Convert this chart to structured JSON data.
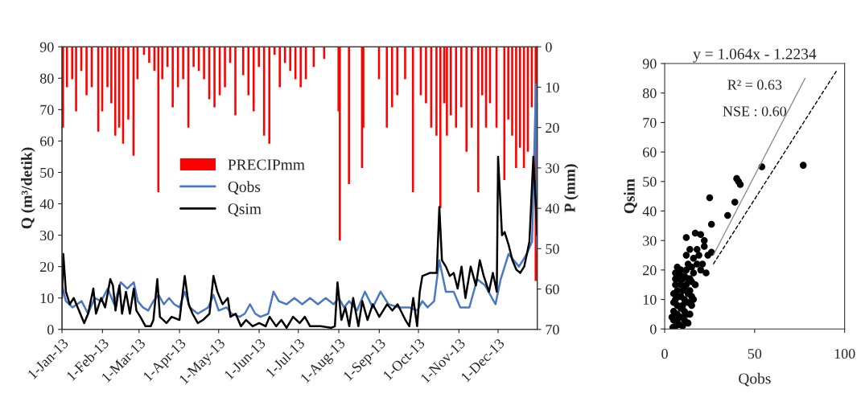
{
  "chart_data": [
    {
      "type": "line",
      "xlabel": null,
      "ylabel": "Q (m³/detik)",
      "y2label": "P (mm)",
      "legend": "center left",
      "xlim": [
        "2013-01-01",
        "2013-12-31"
      ],
      "xticks": [
        {
          "value": "2013-01-01",
          "label": "1-Jan-13"
        },
        {
          "value": "2013-02-01",
          "label": "1-Feb-13"
        },
        {
          "value": "2013-03-01",
          "label": "1-Mar-13"
        },
        {
          "value": "2013-04-01",
          "label": "1-Apr-13"
        },
        {
          "value": "2013-05-01",
          "label": "1-May-13"
        },
        {
          "value": "2013-06-01",
          "label": "1-Jun-13"
        },
        {
          "value": "2013-07-01",
          "label": "1-Jul-13"
        },
        {
          "value": "2013-08-01",
          "label": "1-Aug-13"
        },
        {
          "value": "2013-09-01",
          "label": "1-Sep-13"
        },
        {
          "value": "2013-10-01",
          "label": "1-Oct-13"
        },
        {
          "value": "2013-11-01",
          "label": "1-Nov-13"
        },
        {
          "value": "2013-12-01",
          "label": "1-Dec-13"
        }
      ],
      "ylim": [
        0,
        90
      ],
      "yticks": [
        0,
        10,
        20,
        30,
        40,
        50,
        60,
        70,
        80,
        90
      ],
      "y2lim": [
        70,
        0
      ],
      "y2ticks": [
        0,
        10,
        20,
        30,
        40,
        50,
        60,
        70
      ],
      "series": [
        {
          "name": "PRECIPmm",
          "type": "bar",
          "axis": "y2",
          "color": "#ff0000",
          "x": [
            "2013-01-01",
            "2013-01-04",
            "2013-01-08",
            "2013-01-11",
            "2013-01-15",
            "2013-01-19",
            "2013-01-23",
            "2013-01-28",
            "2013-01-31",
            "2013-02-04",
            "2013-02-07",
            "2013-02-10",
            "2013-02-13",
            "2013-02-16",
            "2013-02-20",
            "2013-02-24",
            "2013-02-27",
            "2013-03-04",
            "2013-03-08",
            "2013-03-12",
            "2013-03-15",
            "2013-03-18",
            "2013-03-22",
            "2013-03-26",
            "2013-03-30",
            "2013-04-03",
            "2013-04-07",
            "2013-04-11",
            "2013-04-15",
            "2013-04-19",
            "2013-04-23",
            "2013-04-27",
            "2013-05-01",
            "2013-05-05",
            "2013-05-09",
            "2013-05-13",
            "2013-05-19",
            "2013-05-23",
            "2013-05-27",
            "2013-05-31",
            "2013-06-04",
            "2013-06-08",
            "2013-06-12",
            "2013-06-16",
            "2013-06-20",
            "2013-06-24",
            "2013-06-28",
            "2013-07-02",
            "2013-07-06",
            "2013-07-12",
            "2013-07-20",
            "2013-07-31",
            "2013-08-01",
            "2013-08-08",
            "2013-08-18",
            "2013-08-19",
            "2013-08-31",
            "2013-09-06",
            "2013-09-10",
            "2013-09-14",
            "2013-09-20",
            "2013-09-26",
            "2013-10-02",
            "2013-10-06",
            "2013-10-10",
            "2013-10-14",
            "2013-10-17",
            "2013-10-20",
            "2013-10-22",
            "2013-10-25",
            "2013-10-29",
            "2013-11-02",
            "2013-11-06",
            "2013-11-10",
            "2013-11-15",
            "2013-11-18",
            "2013-11-21",
            "2013-11-24",
            "2013-11-29",
            "2013-12-05",
            "2013-12-08",
            "2013-12-11",
            "2013-12-14",
            "2013-12-17",
            "2013-12-20",
            "2013-12-23",
            "2013-12-26",
            "2013-12-29"
          ],
          "values": [
            20,
            10,
            8,
            16,
            6,
            12,
            10,
            21,
            16,
            10,
            14,
            22,
            20,
            24,
            18,
            27,
            8,
            2,
            4,
            6,
            36,
            8,
            5,
            15,
            10,
            8,
            20,
            5,
            6,
            8,
            13,
            15,
            12,
            10,
            4,
            17,
            7,
            12,
            16,
            5,
            22,
            24,
            2,
            10,
            4,
            6,
            8,
            10,
            8,
            5,
            3,
            16,
            48,
            34,
            30,
            20,
            8,
            20,
            15,
            12,
            8,
            36,
            12,
            14,
            20,
            22,
            40,
            14,
            22,
            17,
            20,
            15,
            26,
            20,
            36,
            12,
            20,
            14,
            20,
            33,
            18,
            22,
            30,
            25,
            30,
            26,
            15,
            58
          ]
        },
        {
          "name": "Qobs",
          "color": "#4a78c2",
          "x": [
            "2013-01-01",
            "2013-01-04",
            "2013-01-09",
            "2013-01-16",
            "2013-01-21",
            "2013-01-26",
            "2013-01-31",
            "2013-02-05",
            "2013-02-10",
            "2013-02-15",
            "2013-02-20",
            "2013-02-25",
            "2013-02-28",
            "2013-03-04",
            "2013-03-08",
            "2013-03-12",
            "2013-03-16",
            "2013-03-20",
            "2013-03-24",
            "2013-03-28",
            "2013-04-01",
            "2013-04-05",
            "2013-04-09",
            "2013-04-15",
            "2013-04-19",
            "2013-04-23",
            "2013-04-27",
            "2013-05-01",
            "2013-05-07",
            "2013-05-11",
            "2013-05-17",
            "2013-05-21",
            "2013-05-25",
            "2013-05-29",
            "2013-06-02",
            "2013-06-08",
            "2013-06-12",
            "2013-06-16",
            "2013-06-22",
            "2013-06-28",
            "2013-07-04",
            "2013-07-10",
            "2013-07-16",
            "2013-07-22",
            "2013-07-28",
            "2013-08-01",
            "2013-08-05",
            "2013-08-09",
            "2013-08-15",
            "2013-08-21",
            "2013-08-27",
            "2013-09-02",
            "2013-09-08",
            "2013-09-16",
            "2013-09-24",
            "2013-09-30",
            "2013-10-04",
            "2013-10-08",
            "2013-10-13",
            "2013-10-17",
            "2013-10-22",
            "2013-10-28",
            "2013-11-02",
            "2013-11-09",
            "2013-11-15",
            "2013-11-21",
            "2013-11-29",
            "2013-12-03",
            "2013-12-09",
            "2013-12-17",
            "2013-12-23",
            "2013-12-27",
            "2013-12-30",
            "2013-12-31"
          ],
          "values": [
            14,
            9,
            7,
            9,
            5,
            10,
            9,
            13,
            8,
            15,
            13,
            15,
            9,
            7,
            6,
            9,
            11,
            8,
            10,
            8,
            7,
            12,
            7,
            5,
            6,
            7,
            11,
            6,
            7,
            5,
            4,
            5,
            8,
            5,
            4,
            5,
            12,
            9,
            8,
            10,
            8,
            10,
            8,
            10,
            8,
            10,
            7,
            9,
            6,
            12,
            7,
            12,
            8,
            7,
            7,
            6,
            9,
            7,
            9,
            22,
            12,
            12,
            7,
            7,
            16,
            14,
            8,
            16,
            24,
            20,
            24,
            28,
            78,
            25
          ]
        },
        {
          "name": "Qsim",
          "color": "#000000",
          "x": [
            "2013-01-01",
            "2013-01-02",
            "2013-01-04",
            "2013-01-07",
            "2013-01-10",
            "2013-01-14",
            "2013-01-18",
            "2013-01-21",
            "2013-01-25",
            "2013-01-27",
            "2013-01-31",
            "2013-02-03",
            "2013-02-07",
            "2013-02-09",
            "2013-02-11",
            "2013-02-14",
            "2013-02-16",
            "2013-02-19",
            "2013-02-22",
            "2013-02-25",
            "2013-02-27",
            "2013-03-02",
            "2013-03-06",
            "2013-03-10",
            "2013-03-12",
            "2013-03-15",
            "2013-03-17",
            "2013-03-22",
            "2013-03-26",
            "2013-04-01",
            "2013-04-05",
            "2013-04-08",
            "2013-04-11",
            "2013-04-15",
            "2013-04-19",
            "2013-04-24",
            "2013-04-27",
            "2013-04-30",
            "2013-05-04",
            "2013-05-08",
            "2013-05-10",
            "2013-05-14",
            "2013-05-18",
            "2013-05-22",
            "2013-05-27",
            "2013-06-01",
            "2013-06-06",
            "2013-06-09",
            "2013-06-14",
            "2013-06-18",
            "2013-06-22",
            "2013-06-27",
            "2013-07-02",
            "2013-07-06",
            "2013-07-10",
            "2013-07-18",
            "2013-07-26",
            "2013-07-29",
            "2013-07-31",
            "2013-08-03",
            "2013-08-06",
            "2013-08-09",
            "2013-08-12",
            "2013-08-16",
            "2013-08-19",
            "2013-08-23",
            "2013-08-27",
            "2013-09-01",
            "2013-09-07",
            "2013-09-11",
            "2013-09-15",
            "2013-09-21",
            "2013-09-24",
            "2013-09-27",
            "2013-09-30",
            "2013-10-02",
            "2013-10-04",
            "2013-10-10",
            "2013-10-15",
            "2013-10-17",
            "2013-10-19",
            "2013-10-22",
            "2013-10-25",
            "2013-10-28",
            "2013-10-31",
            "2013-11-03",
            "2013-11-06",
            "2013-11-10",
            "2013-11-14",
            "2013-11-17",
            "2013-11-20",
            "2013-11-24",
            "2013-11-27",
            "2013-11-30",
            "2013-12-01",
            "2013-12-04",
            "2013-12-06",
            "2013-12-09",
            "2013-12-12",
            "2013-12-15",
            "2013-12-18",
            "2013-12-21",
            "2013-12-25",
            "2013-12-28",
            "2013-12-31"
          ],
          "values": [
            10,
            24,
            12,
            8,
            10,
            6,
            2,
            5,
            13,
            5,
            10,
            7,
            16,
            14,
            6,
            14,
            5,
            12,
            5,
            13,
            6,
            4,
            1,
            1,
            3,
            16,
            4,
            2,
            4,
            3,
            17,
            8,
            5,
            2,
            3,
            5,
            17,
            12,
            8,
            10,
            4,
            5,
            1,
            3,
            1,
            2,
            1,
            4,
            1,
            3,
            0.5,
            4,
            2,
            4,
            1,
            1,
            0.5,
            1,
            15,
            3,
            7,
            1,
            10,
            1,
            9,
            3,
            8,
            4,
            8,
            6,
            8,
            3,
            1,
            10,
            1,
            12,
            17,
            18,
            18,
            39,
            22,
            20,
            17,
            18,
            13,
            20,
            10,
            20,
            14,
            22,
            17,
            12,
            18,
            12,
            55,
            30,
            31,
            27,
            22,
            19,
            18,
            20,
            28,
            55,
            30
          ]
        }
      ]
    },
    {
      "type": "scatter",
      "title": "y = 1.064x - 1.2234",
      "xlabel": "Qobs",
      "ylabel": "Qsim",
      "xlim": [
        0,
        100
      ],
      "xticks": [
        0,
        50,
        100
      ],
      "ylim": [
        0,
        90
      ],
      "yticks": [
        0,
        10,
        20,
        30,
        40,
        50,
        60,
        70,
        80,
        90
      ],
      "annotations": [
        "R² = 0.63",
        "NSE : 0.60"
      ],
      "series": [
        {
          "marker": "circle",
          "color": "#000000",
          "x": [
            77,
            54,
            40,
            41,
            42,
            39,
            35,
            25,
            26,
            26,
            24,
            22,
            20,
            17,
            12,
            14,
            18,
            22,
            20,
            23,
            21,
            16,
            18,
            12,
            15,
            12,
            9,
            7,
            6,
            8,
            10,
            13,
            15,
            6,
            11,
            13,
            5,
            7,
            9,
            11,
            13,
            15,
            5,
            7,
            9,
            11,
            14,
            5,
            7,
            9,
            11,
            13,
            5,
            8,
            10,
            4.5,
            6,
            7,
            10,
            12,
            14,
            16,
            6,
            8,
            10,
            6,
            4,
            15,
            17,
            19,
            13,
            11,
            9,
            7,
            12,
            14,
            16
          ],
          "values": [
            55.5,
            55,
            51,
            50,
            49,
            43,
            38.5,
            44.5,
            35.5,
            26,
            25,
            30,
            32,
            32.5,
            31,
            27,
            27,
            28,
            20,
            19,
            22,
            24,
            22,
            25,
            21,
            20,
            20,
            21,
            19,
            17,
            17,
            17,
            16,
            15,
            14,
            12,
            12,
            11,
            11,
            10,
            9,
            8,
            9,
            8,
            7,
            6,
            5,
            6,
            5,
            4,
            3,
            2,
            3,
            1.5,
            1,
            0.5,
            1,
            3,
            8,
            15,
            13,
            19,
            17,
            19,
            13,
            10,
            4,
            11,
            15,
            25,
            22,
            18,
            15,
            13,
            5,
            17,
            10
          ]
        },
        {
          "type": "line",
          "line_style": "solid",
          "color": "#909090",
          "x": [
            27,
            78
          ],
          "values": [
            25,
            85
          ]
        },
        {
          "type": "line",
          "line_style": "dashed",
          "color": "#000000",
          "x": [
            27,
            96
          ],
          "values": [
            22,
            88
          ]
        }
      ]
    }
  ]
}
